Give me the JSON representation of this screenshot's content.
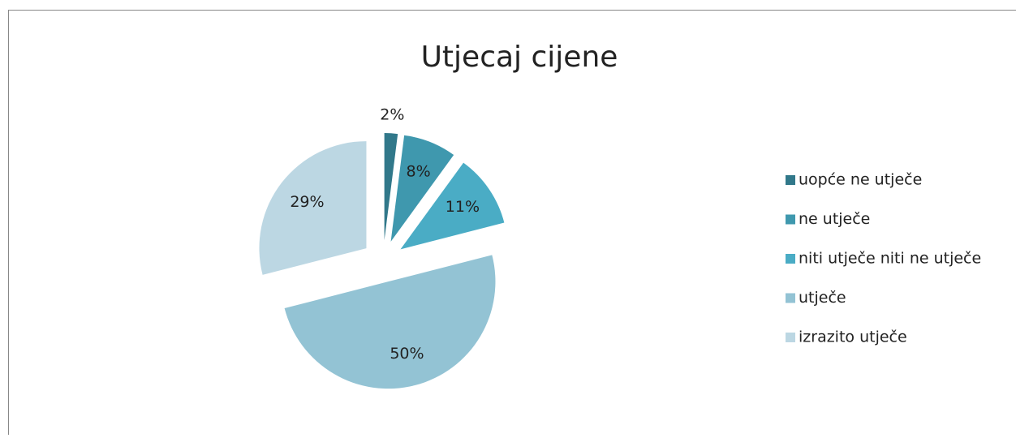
{
  "chart_data": {
    "type": "pie",
    "title": "Utjecaj cijene",
    "categories": [
      "uopće ne utječe",
      "ne utječe",
      "niti utječe niti ne utječe",
      "utječe",
      "izrazito utječe"
    ],
    "values": [
      2,
      8,
      11,
      50,
      29
    ],
    "value_labels": [
      "2%",
      "8%",
      "11%",
      "50%",
      "29%"
    ],
    "colors": [
      "#31788a",
      "#3f98ae",
      "#4aacc5",
      "#93c3d4",
      "#bcd7e3"
    ],
    "legend": "right"
  }
}
